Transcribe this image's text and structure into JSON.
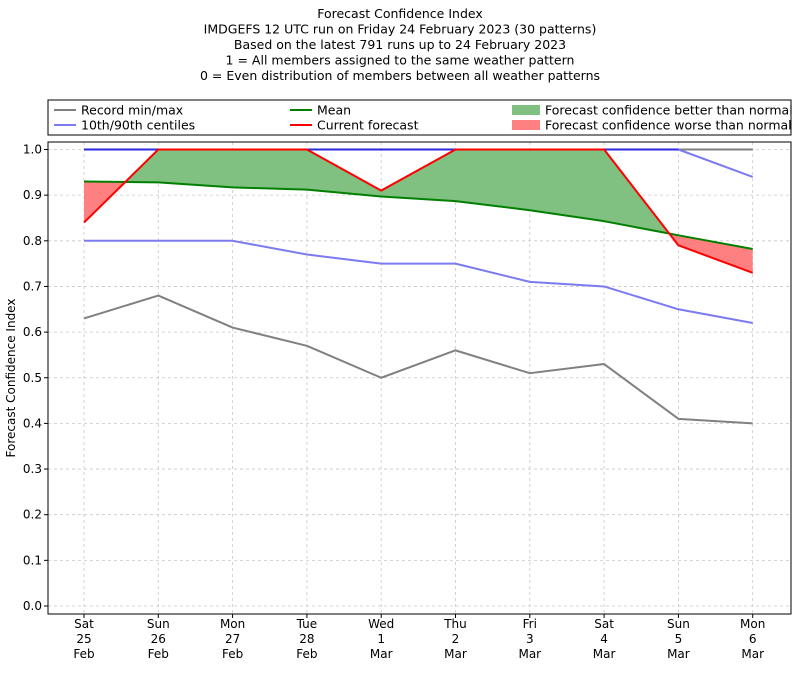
{
  "chart_data": {
    "type": "line",
    "title_lines": [
      "Forecast Confidence Index",
      "IMDGEFS 12 UTC run on Friday 24 February 2023 (30 patterns)",
      "Based on the latest 791 runs up to 24 February 2023",
      "1 = All members assigned to the same weather pattern",
      "0 = Even distribution of members between all weather patterns"
    ],
    "ylabel": "Forecast Confidence Index",
    "ylim": [
      0,
      1
    ],
    "yticks": [
      "0.0",
      "0.1",
      "0.2",
      "0.3",
      "0.4",
      "0.5",
      "0.6",
      "0.7",
      "0.8",
      "0.9",
      "1.0"
    ],
    "categories": [
      [
        "Sat",
        "25",
        "Feb"
      ],
      [
        "Sun",
        "26",
        "Feb"
      ],
      [
        "Mon",
        "27",
        "Feb"
      ],
      [
        "Tue",
        "28",
        "Feb"
      ],
      [
        "Wed",
        "1",
        "Mar"
      ],
      [
        "Thu",
        "2",
        "Mar"
      ],
      [
        "Fri",
        "3",
        "Mar"
      ],
      [
        "Sat",
        "4",
        "Mar"
      ],
      [
        "Sun",
        "5",
        "Mar"
      ],
      [
        "Mon",
        "6",
        "Mar"
      ]
    ],
    "grid": true,
    "series": {
      "record_max": [
        1.0,
        1.0,
        1.0,
        1.0,
        1.0,
        1.0,
        1.0,
        1.0,
        1.0,
        1.0
      ],
      "record_min": [
        0.63,
        0.68,
        0.61,
        0.57,
        0.5,
        0.56,
        0.51,
        0.53,
        0.41,
        0.4
      ],
      "p90": [
        1.0,
        1.0,
        1.0,
        1.0,
        1.0,
        1.0,
        1.0,
        1.0,
        1.0,
        0.94
      ],
      "p10": [
        0.8,
        0.8,
        0.8,
        0.77,
        0.75,
        0.75,
        0.71,
        0.7,
        0.65,
        0.62
      ],
      "mean": [
        0.93,
        0.928,
        0.917,
        0.912,
        0.897,
        0.887,
        0.867,
        0.843,
        0.812,
        0.782
      ],
      "current": [
        0.84,
        1.0,
        1.0,
        1.0,
        0.91,
        1.0,
        1.0,
        1.0,
        0.79,
        0.73
      ]
    },
    "legend": [
      {
        "label": "Record min/max",
        "kind": "line",
        "color": "#808080"
      },
      {
        "label": "10th/90th centiles",
        "kind": "line",
        "color": "#7b7bf0"
      },
      {
        "label": "Mean",
        "kind": "line",
        "color": "#008000"
      },
      {
        "label": "Current forecast",
        "kind": "line",
        "color": "#ff0000"
      },
      {
        "label": "Forecast confidence better than normal",
        "kind": "patch",
        "color": "#80c080"
      },
      {
        "label": "Forecast confidence worse than normal",
        "kind": "patch",
        "color": "#ff8080"
      }
    ],
    "colors": {
      "record": "#808080",
      "centile": "#7b7bf0",
      "centile_top": "#2a2ae0",
      "mean": "#008000",
      "current": "#ff0000",
      "better": "#80c080",
      "worse": "#ff8080"
    }
  }
}
